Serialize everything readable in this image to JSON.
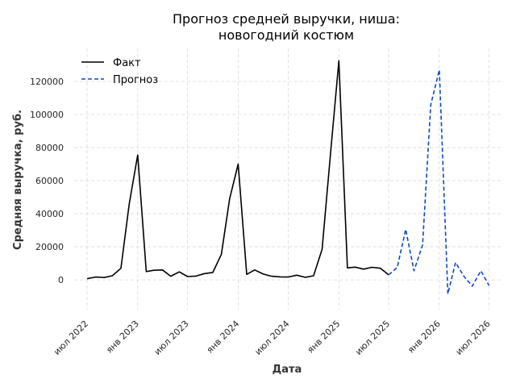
{
  "chart_data": {
    "type": "line",
    "title": [
      "Прогноз средней выручки, ниша:",
      "новогодний костюм"
    ],
    "xlabel": "Дата",
    "ylabel": "Средняя выручка, руб.",
    "ylim": [
      -18000,
      140000
    ],
    "yticks": [
      0,
      20000,
      40000,
      60000,
      80000,
      100000,
      120000
    ],
    "xticks": [
      {
        "label": "июл 2022",
        "value": "2022-07-01"
      },
      {
        "label": "янв 2023",
        "value": "2023-01-01"
      },
      {
        "label": "июл 2023",
        "value": "2023-07-01"
      },
      {
        "label": "янв 2024",
        "value": "2024-01-01"
      },
      {
        "label": "июл 2024",
        "value": "2024-07-01"
      },
      {
        "label": "янв 2025",
        "value": "2025-01-01"
      },
      {
        "label": "июл 2025",
        "value": "2025-07-01"
      },
      {
        "label": "янв 2026",
        "value": "2026-01-01"
      },
      {
        "label": "июл 2026",
        "value": "2026-07-01"
      }
    ],
    "xlim": [
      "2022-05-15",
      "2026-08-15"
    ],
    "grid": true,
    "legend_position": "top-left",
    "series": [
      {
        "name": "Факт",
        "color": "#000000",
        "style": "solid",
        "points": [
          [
            "2022-07-01",
            700
          ],
          [
            "2022-08-01",
            1700
          ],
          [
            "2022-09-01",
            1400
          ],
          [
            "2022-10-01",
            2500
          ],
          [
            "2022-11-01",
            7000
          ],
          [
            "2022-12-01",
            46000
          ],
          [
            "2023-01-01",
            75500
          ],
          [
            "2023-02-01",
            5000
          ],
          [
            "2023-03-01",
            5800
          ],
          [
            "2023-04-01",
            6000
          ],
          [
            "2023-05-01",
            2200
          ],
          [
            "2023-06-01",
            4800
          ],
          [
            "2023-07-01",
            2000
          ],
          [
            "2023-08-01",
            2300
          ],
          [
            "2023-09-01",
            3800
          ],
          [
            "2023-10-01",
            4500
          ],
          [
            "2023-11-01",
            15500
          ],
          [
            "2023-12-01",
            49000
          ],
          [
            "2024-01-01",
            70000
          ],
          [
            "2024-02-01",
            3300
          ],
          [
            "2024-03-01",
            6000
          ],
          [
            "2024-04-01",
            3500
          ],
          [
            "2024-05-01",
            2200
          ],
          [
            "2024-06-01",
            1800
          ],
          [
            "2024-07-01",
            1700
          ],
          [
            "2024-08-01",
            2800
          ],
          [
            "2024-09-01",
            1500
          ],
          [
            "2024-10-01",
            2500
          ],
          [
            "2024-11-01",
            18500
          ],
          [
            "2024-12-01",
            75000
          ],
          [
            "2025-01-01",
            132500
          ],
          [
            "2025-02-01",
            7200
          ],
          [
            "2025-03-01",
            7700
          ],
          [
            "2025-04-01",
            6500
          ],
          [
            "2025-05-01",
            7600
          ],
          [
            "2025-06-01",
            7000
          ],
          [
            "2025-07-01",
            3000
          ]
        ]
      },
      {
        "name": "Прогноз",
        "color": "#0e47c9",
        "style": "dashed",
        "points": [
          [
            "2025-07-01",
            3000
          ],
          [
            "2025-08-01",
            7500
          ],
          [
            "2025-09-01",
            30500
          ],
          [
            "2025-10-01",
            5500
          ],
          [
            "2025-11-01",
            21000
          ],
          [
            "2025-12-01",
            106000
          ],
          [
            "2026-01-01",
            127000
          ],
          [
            "2026-02-01",
            -8500
          ],
          [
            "2026-03-01",
            10500
          ],
          [
            "2026-04-01",
            2000
          ],
          [
            "2026-05-01",
            -3800
          ],
          [
            "2026-06-01",
            5500
          ],
          [
            "2026-07-01",
            -3500
          ]
        ]
      }
    ]
  }
}
